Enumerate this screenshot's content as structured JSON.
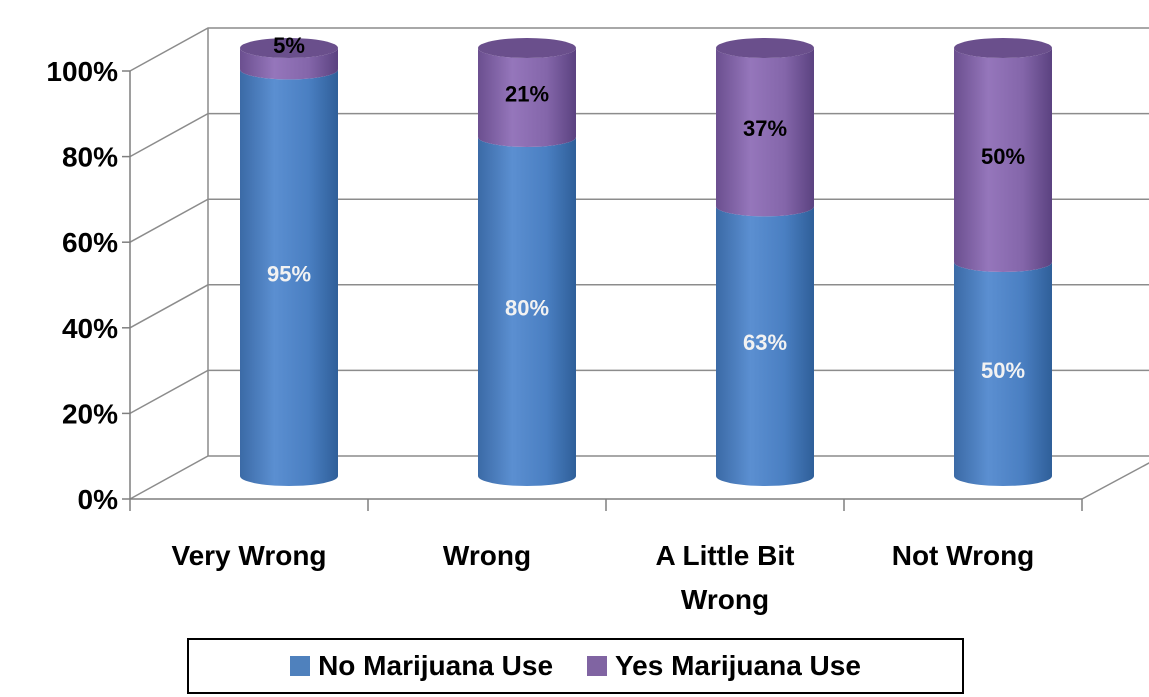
{
  "chart_data": {
    "type": "bar",
    "stacked": true,
    "percent_stacked": true,
    "three_d": true,
    "categories": [
      "Very Wrong",
      "Wrong",
      "A Little Bit Wrong",
      "Not Wrong"
    ],
    "category_label_lines": [
      [
        "Very Wrong"
      ],
      [
        "Wrong"
      ],
      [
        "A Little Bit",
        "Wrong"
      ],
      [
        "Not Wrong"
      ]
    ],
    "series": [
      {
        "name": "No Marijuana Use",
        "values": [
          95,
          80,
          63,
          50
        ],
        "labels": [
          "95%",
          "80%",
          "63%",
          "50%"
        ],
        "color": "#4F81BD",
        "label_color": "#F2F2F2"
      },
      {
        "name": "Yes Marijuana Use",
        "values": [
          5,
          21,
          37,
          50
        ],
        "labels": [
          "5%",
          "21%",
          "37%",
          "50%"
        ],
        "color": "#8064A2",
        "label_color": "#000000"
      }
    ],
    "yticks": [
      "0%",
      "20%",
      "40%",
      "60%",
      "80%",
      "100%"
    ],
    "ylim": [
      0,
      100
    ],
    "grid": true,
    "legend": "bottom",
    "title": "",
    "xlabel": "",
    "ylabel": ""
  }
}
